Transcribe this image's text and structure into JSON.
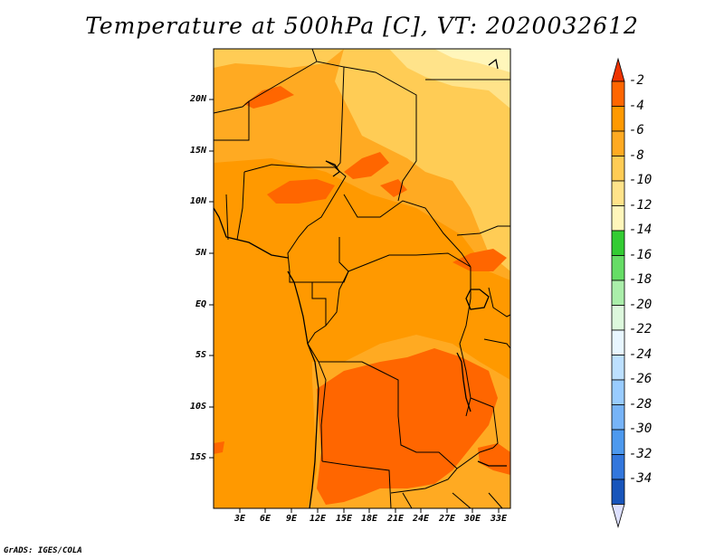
{
  "title": "Temperature at 500hPa [C], VT: 2020032612",
  "credit": "GrADS: IGES/COLA",
  "map": {
    "lon_range": [
      0,
      34
    ],
    "lat_range": [
      -20,
      25
    ],
    "lat_ticks": [
      {
        "value": 20,
        "label": "20N"
      },
      {
        "value": 15,
        "label": "15N"
      },
      {
        "value": 10,
        "label": "10N"
      },
      {
        "value": 5,
        "label": "5N"
      },
      {
        "value": 0,
        "label": "EQ"
      },
      {
        "value": -5,
        "label": "5S"
      },
      {
        "value": -10,
        "label": "10S"
      },
      {
        "value": -15,
        "label": "15S"
      }
    ],
    "lon_ticks": [
      {
        "value": 3,
        "label": "3E"
      },
      {
        "value": 6,
        "label": "6E"
      },
      {
        "value": 9,
        "label": "9E"
      },
      {
        "value": 12,
        "label": "12E"
      },
      {
        "value": 15,
        "label": "15E"
      },
      {
        "value": 18,
        "label": "18E"
      },
      {
        "value": 21,
        "label": "21E"
      },
      {
        "value": 24,
        "label": "24E"
      },
      {
        "value": 27,
        "label": "27E"
      },
      {
        "value": 30,
        "label": "30E"
      },
      {
        "value": 33,
        "label": "33E"
      }
    ]
  },
  "colorbar": {
    "levels": [
      {
        "label": "-2",
        "color": "#ff6600"
      },
      {
        "label": "-4",
        "color": "#ff9900"
      },
      {
        "label": "-6",
        "color": "#ffaa22"
      },
      {
        "label": "-8",
        "color": "#ffcc55"
      },
      {
        "label": "-10",
        "color": "#ffe38a"
      },
      {
        "label": "-12",
        "color": "#fff6bb"
      },
      {
        "label": "-14",
        "color": "#33cc33"
      },
      {
        "label": "-16",
        "color": "#66dd66"
      },
      {
        "label": "-18",
        "color": "#aaeeaa"
      },
      {
        "label": "-20",
        "color": "#ddf8dd"
      },
      {
        "label": "-22",
        "color": "#e8f6ff"
      },
      {
        "label": "-24",
        "color": "#bde0ff"
      },
      {
        "label": "-26",
        "color": "#99ccff"
      },
      {
        "label": "-28",
        "color": "#77b4f8"
      },
      {
        "label": "-30",
        "color": "#4d99ee"
      },
      {
        "label": "-32",
        "color": "#3377dd"
      },
      {
        "label": "-34",
        "color": "#1855bb"
      }
    ],
    "top_color": "#ee3300",
    "bottom_color": "#0a1570"
  }
}
